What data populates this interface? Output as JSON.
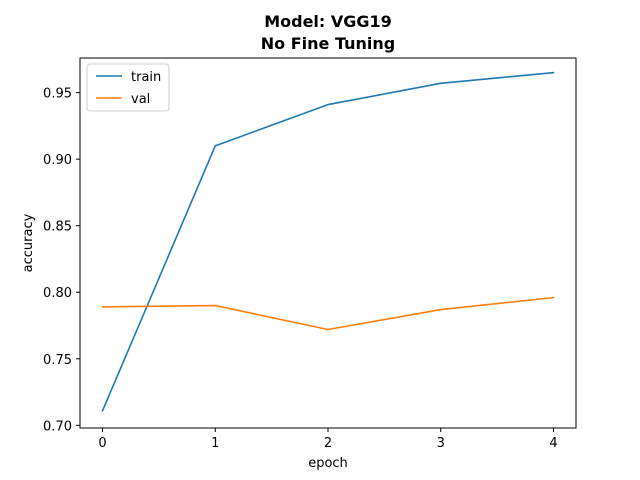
{
  "chart_data": {
    "type": "line",
    "title": "Model: VGG19",
    "subtitle": "No Fine Tuning",
    "xlabel": "epoch",
    "ylabel": "accuracy",
    "x": [
      0,
      1,
      2,
      3,
      4
    ],
    "xticks": [
      "0",
      "1",
      "2",
      "3",
      "4"
    ],
    "yticks": [
      "0.70",
      "0.75",
      "0.80",
      "0.85",
      "0.90",
      "0.95"
    ],
    "ytick_values": [
      0.7,
      0.75,
      0.8,
      0.85,
      0.9,
      0.95
    ],
    "xlim": [
      -0.2,
      4.2
    ],
    "ylim": [
      0.698,
      0.976
    ],
    "grid": false,
    "legend_position": "upper-left",
    "series": [
      {
        "name": "train",
        "color": "#1f77b4",
        "values": [
          0.711,
          0.91,
          0.941,
          0.957,
          0.965
        ]
      },
      {
        "name": "val",
        "color": "#ff7f0e",
        "values": [
          0.789,
          0.79,
          0.772,
          0.787,
          0.796
        ]
      }
    ]
  }
}
